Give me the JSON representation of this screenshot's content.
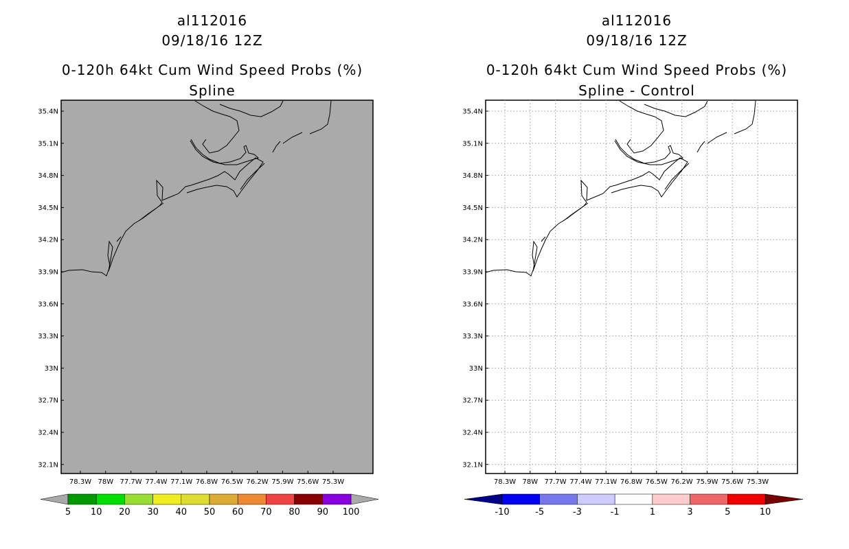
{
  "left_panel": {
    "title_lines": [
      "al112016",
      "09/18/16 12Z",
      "0-120h 64kt Cum Wind Speed Probs (%)",
      "Spline"
    ],
    "background_color": "#aaaaaa",
    "grid": false,
    "lat_labels": [
      "35.4N",
      "35.1N",
      "34.8N",
      "34.5N",
      "34.2N",
      "33.9N",
      "33.6N",
      "33.3N",
      "33N",
      "32.7N",
      "32.4N",
      "32.1N"
    ],
    "lon_labels": [
      "78.3W",
      "78W",
      "77.7W",
      "77.4W",
      "77.1W",
      "76.8W",
      "76.5W",
      "76.2W",
      "75.9W",
      "75.6W",
      "75.3W"
    ],
    "colorbar": {
      "colors": [
        "#009900",
        "#00dd00",
        "#99dd33",
        "#eeee22",
        "#dddd33",
        "#ddaa33",
        "#ee8833",
        "#ee4444",
        "#880000",
        "#8800dd"
      ],
      "left_arrow_color": "#aaaaaa",
      "right_arrow_color": "#aaaaaa",
      "labels": [
        "5",
        "10",
        "20",
        "30",
        "40",
        "50",
        "60",
        "70",
        "80",
        "90",
        "100"
      ]
    }
  },
  "right_panel": {
    "title_lines": [
      "al112016",
      "09/18/16 12Z",
      "0-120h 64kt Cum Wind Speed Probs (%)",
      "Spline - Control"
    ],
    "background_color": "#ffffff",
    "grid": true,
    "lat_labels": [
      "35.4N",
      "35.1N",
      "34.8N",
      "34.5N",
      "34.2N",
      "33.9N",
      "33.6N",
      "33.3N",
      "33N",
      "32.7N",
      "32.4N",
      "32.1N"
    ],
    "lon_labels": [
      "78.3W",
      "78W",
      "77.7W",
      "77.4W",
      "77.1W",
      "76.8W",
      "76.5W",
      "76.2W",
      "75.9W",
      "75.6W",
      "75.3W"
    ],
    "colorbar": {
      "colors": [
        "#0000ee",
        "#7777ee",
        "#ccccff",
        "#ffffff",
        "#ffcccc",
        "#ee6666",
        "#ee0000"
      ],
      "left_arrow_color": "#000088",
      "right_arrow_color": "#770000",
      "labels": [
        "-10",
        "-5",
        "-3",
        "-1",
        "1",
        "3",
        "5",
        "10"
      ]
    }
  }
}
